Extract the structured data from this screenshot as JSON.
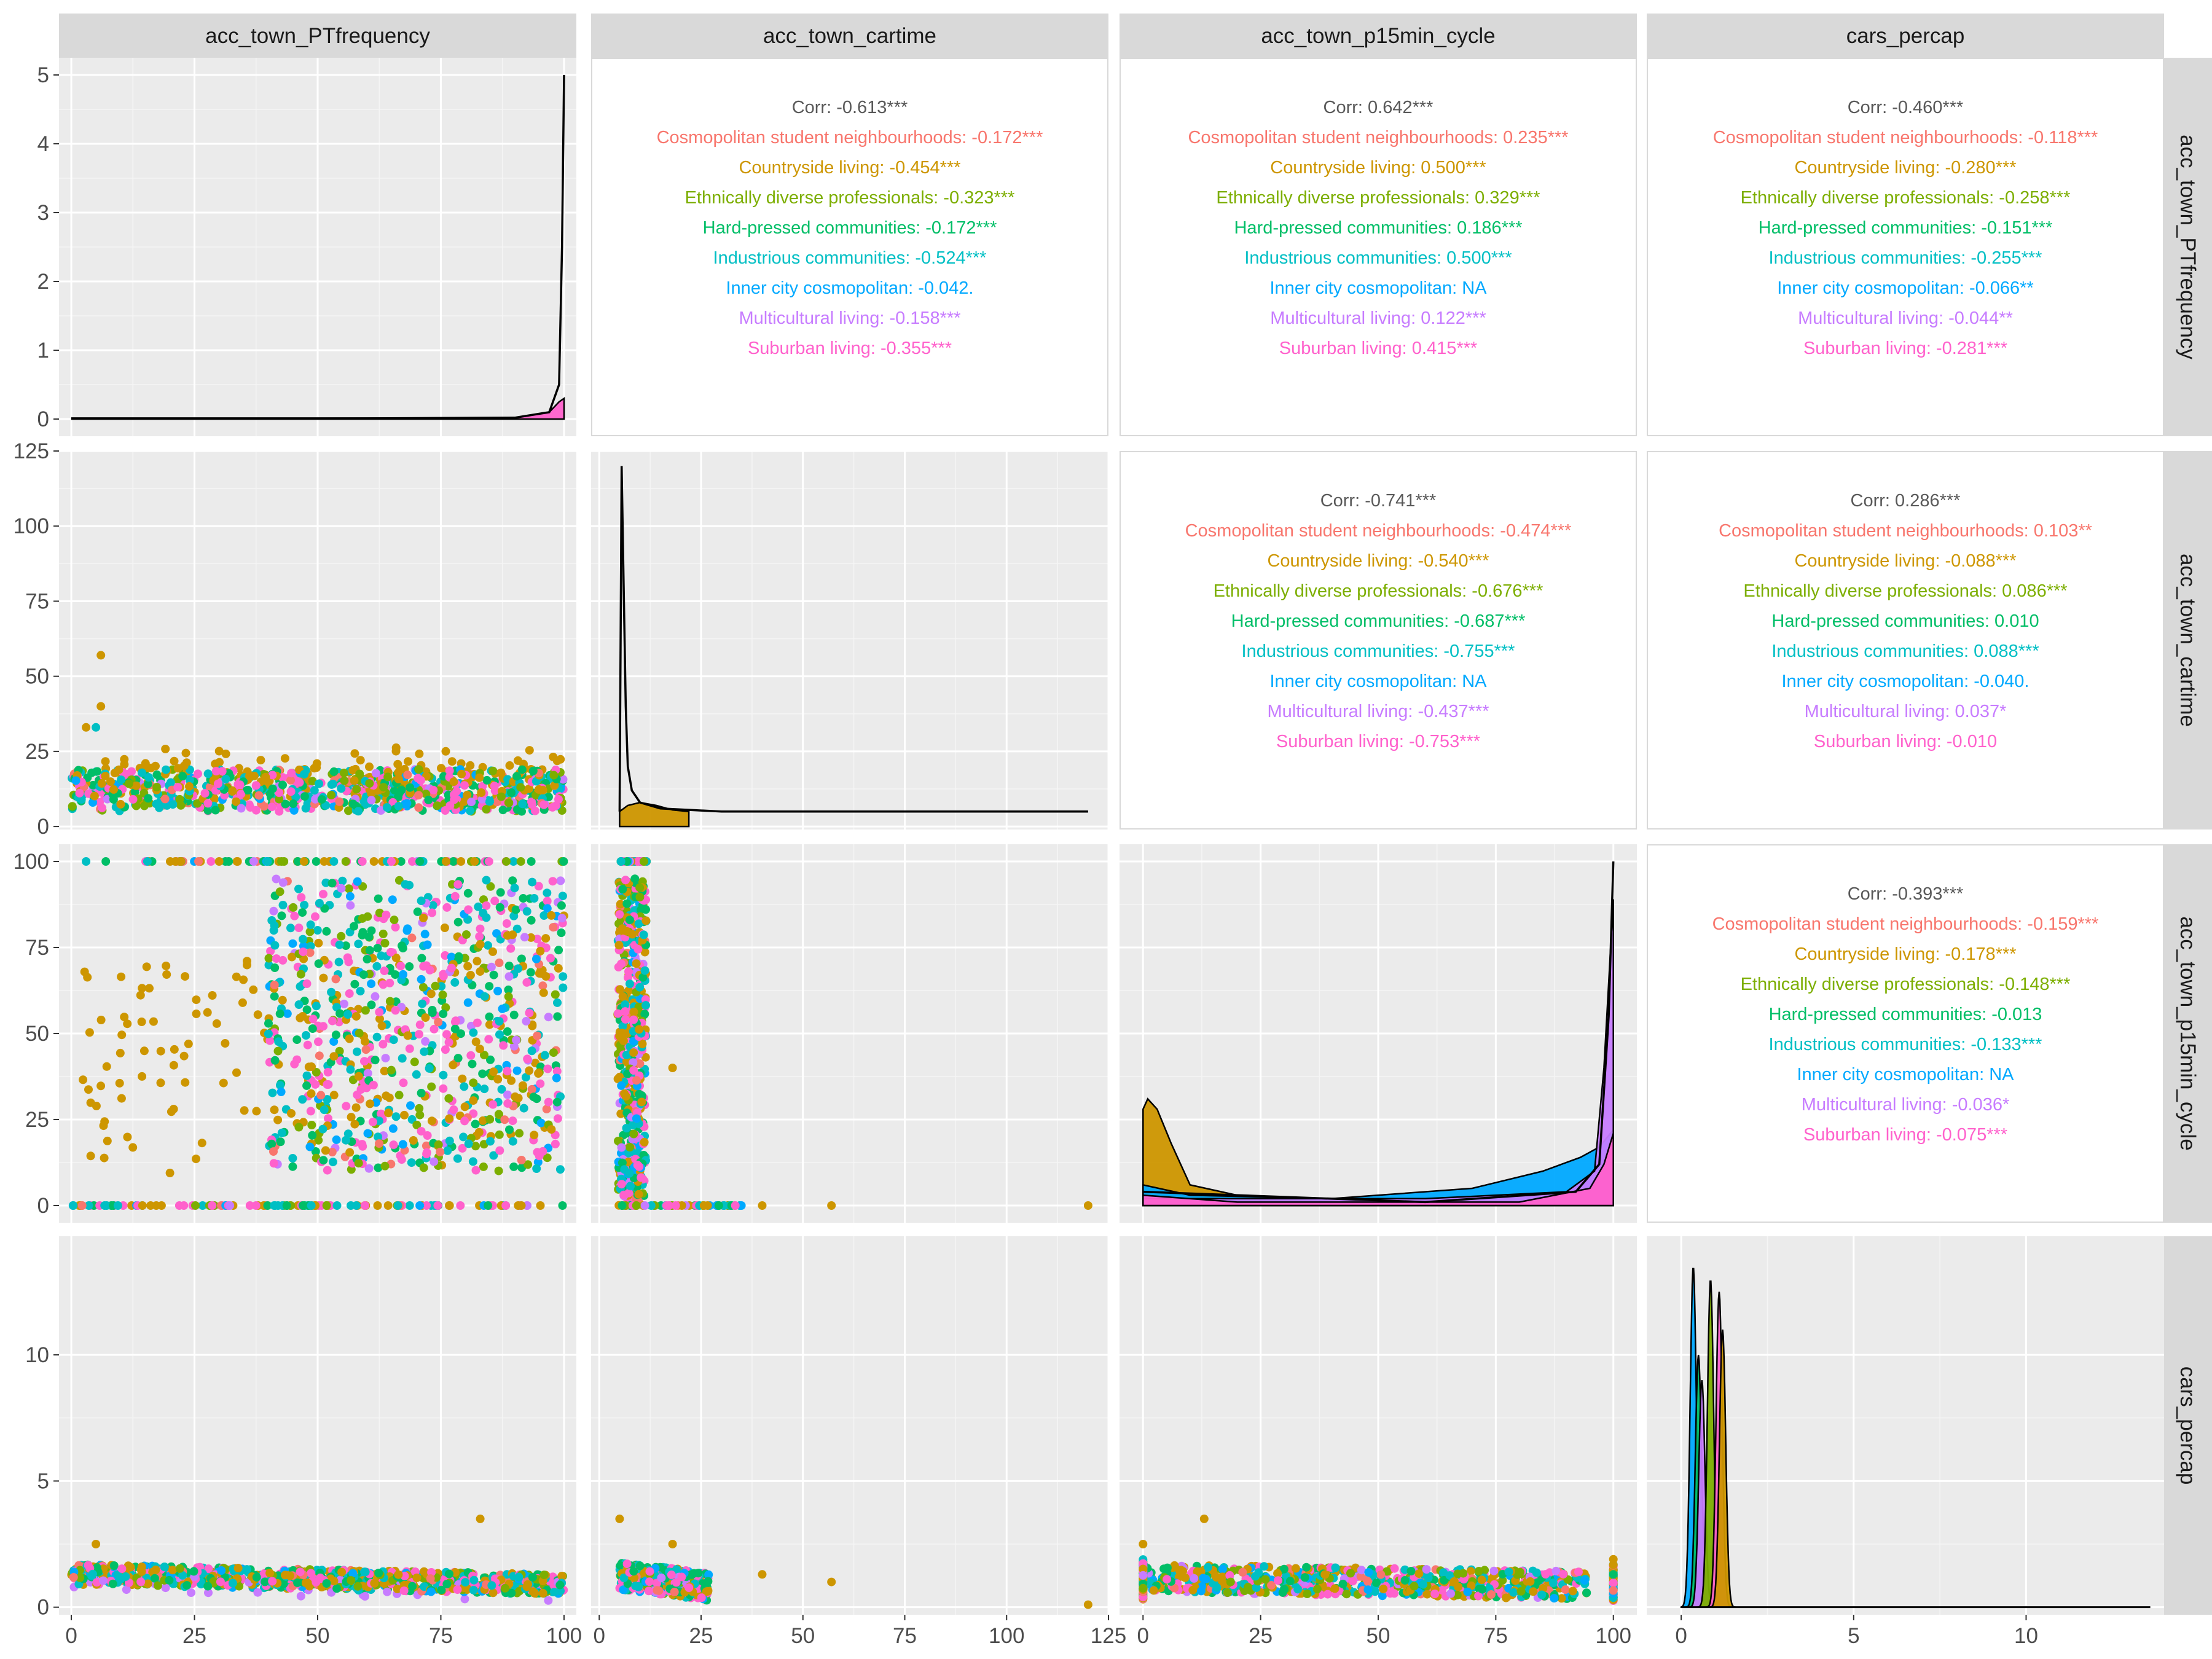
{
  "chart_data": {
    "type": "scatter-matrix",
    "variables": [
      "acc_town_PTfrequency",
      "acc_town_cartime",
      "acc_town_p15min_cycle",
      "cars_percap"
    ],
    "groups": [
      {
        "name": "Cosmopolitan student neighbourhoods",
        "color": "#F8766D"
      },
      {
        "name": "Countryside living",
        "color": "#CD9600"
      },
      {
        "name": "Ethnically diverse professionals",
        "color": "#7CAE00"
      },
      {
        "name": "Hard-pressed communities",
        "color": "#00BE67"
      },
      {
        "name": "Industrious communities",
        "color": "#00BFC4"
      },
      {
        "name": "Inner city cosmopolitan",
        "color": "#00A9FF"
      },
      {
        "name": "Multicultural living",
        "color": "#C77CFF"
      },
      {
        "name": "Suburban living",
        "color": "#FF61CC"
      }
    ],
    "x_axes": [
      {
        "range": [
          -2.5,
          102.5
        ],
        "ticks": [
          0,
          25,
          50,
          75,
          100
        ]
      },
      {
        "range": [
          -2,
          125
        ],
        "ticks": [
          0,
          25,
          50,
          75,
          100,
          125
        ]
      },
      {
        "range": [
          -5,
          105
        ],
        "ticks": [
          0,
          25,
          50,
          75,
          100
        ]
      },
      {
        "range": [
          -1,
          14
        ],
        "ticks": [
          0,
          5,
          10
        ]
      }
    ],
    "y_axes": [
      {
        "range": [
          -0.25,
          5.25
        ],
        "ticks": [
          0,
          1,
          2,
          3,
          4,
          5
        ]
      },
      {
        "range": [
          -1,
          125
        ],
        "ticks": [
          0,
          25,
          50,
          75,
          100,
          125
        ]
      },
      {
        "range": [
          -5,
          105
        ],
        "ticks": [
          0,
          25,
          50,
          75,
          100
        ]
      },
      {
        "range": [
          -0.3,
          14.7
        ],
        "ticks": [
          0,
          5,
          10
        ]
      }
    ],
    "correlations": [
      {
        "row": 0,
        "col": 1,
        "overall": "Corr: -0.613***",
        "groups": [
          "Cosmopolitan student neighbourhoods: -0.172***",
          "Countryside living: -0.454***",
          "Ethnically diverse professionals: -0.323***",
          "Hard-pressed communities: -0.172***",
          "Industrious communities: -0.524***",
          "Inner city cosmopolitan: -0.042.",
          "Multicultural living: -0.158***",
          "Suburban living: -0.355***"
        ]
      },
      {
        "row": 0,
        "col": 2,
        "overall": "Corr: 0.642***",
        "groups": [
          "Cosmopolitan student neighbourhoods: 0.235***",
          "Countryside living: 0.500***",
          "Ethnically diverse professionals: 0.329***",
          "Hard-pressed communities: 0.186***",
          "Industrious communities: 0.500***",
          "Inner city cosmopolitan:   NA",
          "Multicultural living: 0.122***",
          "Suburban living: 0.415***"
        ]
      },
      {
        "row": 0,
        "col": 3,
        "overall": "Corr: -0.460***",
        "groups": [
          "Cosmopolitan student neighbourhoods: -0.118***",
          "Countryside living: -0.280***",
          "Ethnically diverse professionals: -0.258***",
          "Hard-pressed communities: -0.151***",
          "Industrious communities: -0.255***",
          "Inner city cosmopolitan: -0.066**",
          "Multicultural living: -0.044**",
          "Suburban living: -0.281***"
        ]
      },
      {
        "row": 1,
        "col": 2,
        "overall": "Corr: -0.741***",
        "groups": [
          "Cosmopolitan student neighbourhoods: -0.474***",
          "Countryside living: -0.540***",
          "Ethnically diverse professionals: -0.676***",
          "Hard-pressed communities: -0.687***",
          "Industrious communities: -0.755***",
          "Inner city cosmopolitan:   NA",
          "Multicultural living: -0.437***",
          "Suburban living: -0.753***"
        ]
      },
      {
        "row": 1,
        "col": 3,
        "overall": "Corr: 0.286***",
        "groups": [
          "Cosmopolitan student neighbourhoods: 0.103**",
          "Countryside living: -0.088***",
          "Ethnically diverse professionals: 0.086***",
          "Hard-pressed communities: 0.010",
          "Industrious communities: 0.088***",
          "Inner city cosmopolitan: -0.040.",
          "Multicultural living: 0.037*",
          "Suburban living: -0.010"
        ]
      },
      {
        "row": 2,
        "col": 3,
        "overall": "Corr: -0.393***",
        "groups": [
          "Cosmopolitan student neighbourhoods: -0.159***",
          "Countryside living: -0.178***",
          "Ethnically diverse professionals: -0.148***",
          "Hard-pressed communities: -0.013",
          "Industrious communities: -0.133***",
          "Inner city cosmopolitan:   NA",
          "Multicultural living: -0.036*",
          "Suburban living: -0.075***"
        ]
      }
    ],
    "diagonal_densities": [
      {
        "var": 0,
        "curves": [
          {
            "group": "Suburban living",
            "x": [
              0,
              90,
              97,
              99,
              100
            ],
            "y": [
              0,
              0.02,
              0.1,
              0.25,
              0.3
            ]
          },
          {
            "group": "all",
            "x": [
              0,
              60,
              90,
              97,
              99,
              99.6,
              100
            ],
            "y": [
              0.01,
              0.01,
              0.02,
              0.1,
              0.5,
              2.5,
              5.0
            ]
          }
        ]
      },
      {
        "var": 1,
        "curves": [
          {
            "group": "Countryside living",
            "x": [
              5,
              7,
              10,
              14,
              18,
              22
            ],
            "y": [
              5,
              7,
              8,
              7,
              5.5,
              5
            ]
          },
          {
            "group": "all",
            "x": [
              5,
              5.5,
              6,
              6.5,
              7,
              8,
              10,
              15,
              30,
              120
            ],
            "y": [
              5,
              120,
              80,
              40,
              20,
              12,
              8,
              6,
              5,
              5
            ]
          }
        ]
      },
      {
        "var": 2,
        "curves": [
          {
            "group": "Countryside living",
            "x": [
              0,
              1,
              3,
              6,
              10,
              20,
              40,
              60,
              80,
              100
            ],
            "y": [
              28,
              31,
              28,
              18,
              6,
              3,
              2,
              2,
              2,
              3
            ]
          },
          {
            "group": "Inner city cosmopolitan",
            "x": [
              0,
              10,
              40,
              70,
              85,
              93,
              97,
              100
            ],
            "y": [
              6,
              3,
              2,
              5,
              10,
              14,
              17,
              22
            ]
          },
          {
            "group": "Multicultural living",
            "x": [
              0,
              60,
              90,
              96,
              98,
              100
            ],
            "y": [
              2,
              2,
              4,
              10,
              40,
              89
            ]
          },
          {
            "group": "Suburban living",
            "x": [
              0,
              20,
              80,
              95,
              98,
              100
            ],
            "y": [
              3,
              1,
              1,
              5,
              12,
              21
            ]
          },
          {
            "group": "all",
            "x": [
              0,
              60,
              92,
              97,
              99,
              100
            ],
            "y": [
              4,
              1,
              4,
              12,
              55,
              100
            ]
          }
        ]
      },
      {
        "var": 3,
        "peaks": [
          {
            "group": "Inner city cosmopolitan",
            "mu": 0.35,
            "height": 13.5
          },
          {
            "group": "Hard-pressed communities",
            "mu": 0.5,
            "height": 10
          },
          {
            "group": "Multicultural living",
            "mu": 0.6,
            "height": 9
          },
          {
            "group": "Ethnically diverse professionals",
            "mu": 0.85,
            "height": 13
          },
          {
            "group": "Suburban living",
            "mu": 1.1,
            "height": 12.5
          },
          {
            "group": "Countryside living",
            "mu": 1.2,
            "height": 11
          }
        ]
      }
    ]
  }
}
